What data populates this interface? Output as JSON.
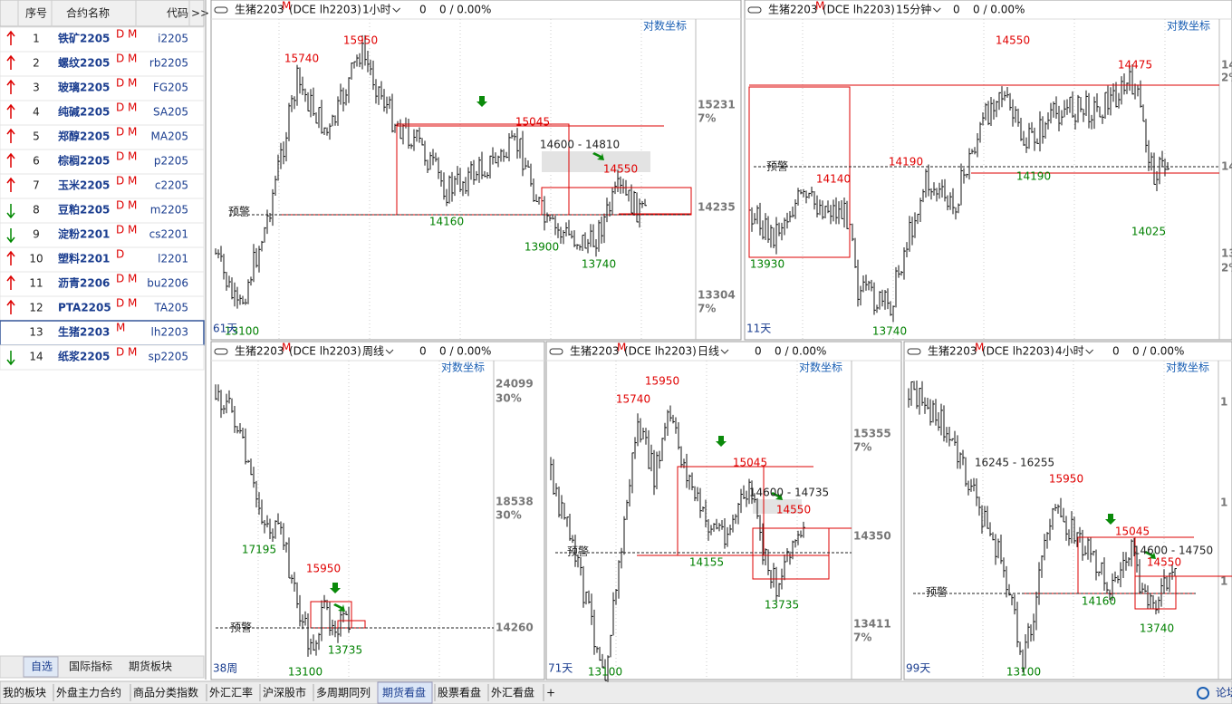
{
  "watchlist": {
    "headers": [
      "序号",
      "合约名称",
      "代码",
      ">>"
    ],
    "rows": [
      {
        "no": "1",
        "name": "铁矿2205",
        "flags": "D M",
        "code": "i2205",
        "arrow": "up"
      },
      {
        "no": "2",
        "name": "螺纹2205",
        "flags": "D M",
        "code": "rb2205",
        "arrow": "up"
      },
      {
        "no": "3",
        "name": "玻璃2205",
        "flags": "D M",
        "code": "FG205",
        "arrow": "up"
      },
      {
        "no": "4",
        "name": "纯碱2205",
        "flags": "D M",
        "code": "SA205",
        "arrow": "up"
      },
      {
        "no": "5",
        "name": "郑醇2205",
        "flags": "D M",
        "code": "MA205",
        "arrow": "up"
      },
      {
        "no": "6",
        "name": "棕榈2205",
        "flags": "D M",
        "code": "p2205",
        "arrow": "up"
      },
      {
        "no": "7",
        "name": "玉米2205",
        "flags": "D M",
        "code": "c2205",
        "arrow": "up"
      },
      {
        "no": "8",
        "name": "豆粕2205",
        "flags": "D M",
        "code": "m2205",
        "arrow": "down"
      },
      {
        "no": "9",
        "name": "淀粉2201",
        "flags": "D M",
        "code": "cs2201",
        "arrow": "down"
      },
      {
        "no": "10",
        "name": "塑料2201",
        "flags": "D",
        "code": "l2201",
        "arrow": "up"
      },
      {
        "no": "11",
        "name": "沥青2206",
        "flags": "D M",
        "code": "bu2206",
        "arrow": "up"
      },
      {
        "no": "12",
        "name": "PTA2205",
        "flags": "D M",
        "code": "TA205",
        "arrow": "up"
      },
      {
        "no": "13",
        "name": "生猪2203",
        "flags": "M",
        "code": "lh2203",
        "arrow": null
      },
      {
        "no": "14",
        "name": "纸浆2205",
        "flags": "D M",
        "code": "sp2205",
        "arrow": "down"
      }
    ],
    "tabs": [
      "自选",
      "国际指标",
      "期货板块"
    ]
  },
  "panels": [
    {
      "symbol": "生猪2203",
      "sup": "M",
      "code": "(DCE lh2203)",
      "period": "1小时",
      "volume": "0",
      "change": "0 / 0.00%",
      "scale": "对数坐标",
      "count": "61天",
      "warn": "预警",
      "axis": [
        "15231",
        "7%",
        "14235",
        "13304",
        "7%"
      ],
      "labels": [
        {
          "text": "15950",
          "color": "red"
        },
        {
          "text": "15740",
          "color": "red"
        },
        {
          "text": "15045",
          "color": "red"
        },
        {
          "text": "14600 - 14810",
          "color": "black"
        },
        {
          "text": "14550",
          "color": "red"
        },
        {
          "text": "14160",
          "color": "green"
        },
        {
          "text": "13900",
          "color": "green"
        },
        {
          "text": "13740",
          "color": "green"
        },
        {
          "text": "13100",
          "color": "green"
        }
      ]
    },
    {
      "symbol": "生猪2203",
      "sup": "M",
      "code": "(DCE lh2203)",
      "period": "15分钟",
      "volume": "0",
      "change": "0 / 0.00%",
      "scale": "对数坐标",
      "count": "11天",
      "warn": "预警",
      "axis": [
        "14",
        "2%",
        "14",
        "13",
        "2%"
      ],
      "labels": [
        {
          "text": "14550",
          "color": "red"
        },
        {
          "text": "14475",
          "color": "red"
        },
        {
          "text": "14190",
          "color": "red"
        },
        {
          "text": "14140",
          "color": "red"
        },
        {
          "text": "14190",
          "color": "green"
        },
        {
          "text": "14025",
          "color": "green"
        },
        {
          "text": "13930",
          "color": "green"
        },
        {
          "text": "13740",
          "color": "green"
        }
      ]
    },
    {
      "symbol": "生猪2203",
      "sup": "M",
      "code": "(DCE lh2203)",
      "period": "周线",
      "volume": "0",
      "change": "0 / 0.00%",
      "scale": "对数坐标",
      "count": "38周",
      "warn": "预警",
      "axis": [
        "24099",
        "30%",
        "18538",
        "30%",
        "14260"
      ],
      "labels": [
        {
          "text": "17195",
          "color": "green"
        },
        {
          "text": "15950",
          "color": "red"
        },
        {
          "text": "13735",
          "color": "green"
        },
        {
          "text": "13100",
          "color": "green"
        }
      ]
    },
    {
      "symbol": "生猪2203",
      "sup": "M",
      "code": "(DCE lh2203)",
      "period": "日线",
      "volume": "0",
      "change": "0 / 0.00%",
      "scale": "对数坐标",
      "count": "71天",
      "warn": "预警",
      "axis": [
        "15355",
        "7%",
        "14350",
        "13411",
        "7%"
      ],
      "labels": [
        {
          "text": "15950",
          "color": "red"
        },
        {
          "text": "15740",
          "color": "red"
        },
        {
          "text": "15045",
          "color": "red"
        },
        {
          "text": "14600 - 14735",
          "color": "black"
        },
        {
          "text": "14550",
          "color": "red"
        },
        {
          "text": "14155",
          "color": "green"
        },
        {
          "text": "13735",
          "color": "green"
        },
        {
          "text": "13100",
          "color": "green"
        }
      ]
    },
    {
      "symbol": "生猪2203",
      "sup": "M",
      "code": "(DCE lh2203)",
      "period": "4小时",
      "volume": "0",
      "change": "0 / 0.00%",
      "scale": "对数坐标",
      "count": "99天",
      "warn": "预警",
      "axis": [
        "1",
        "1",
        "1"
      ],
      "labels": [
        {
          "text": "16245 - 16255",
          "color": "black"
        },
        {
          "text": "15950",
          "color": "red"
        },
        {
          "text": "15045",
          "color": "red"
        },
        {
          "text": "14600 - 14750",
          "color": "black"
        },
        {
          "text": "14550",
          "color": "red"
        },
        {
          "text": "14160",
          "color": "green"
        },
        {
          "text": "13740",
          "color": "green"
        },
        {
          "text": "13100",
          "color": "green"
        }
      ]
    }
  ],
  "taskbar": [
    "我的板块",
    "外盘主力合约",
    "商品分类指数",
    "外汇汇率",
    "沪深股市",
    "多周期同列",
    "期货看盘",
    "股票看盘",
    "外汇看盘",
    "+"
  ],
  "forum": "论坛"
}
